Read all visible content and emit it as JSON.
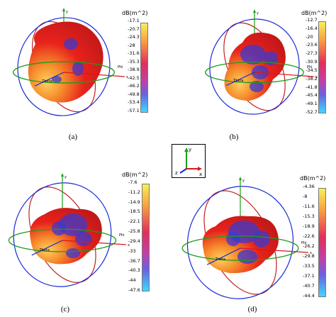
{
  "panels": [
    {
      "caption": "(a)",
      "colorbar": {
        "title": "dB(m^2)",
        "ticks": [
          "-17.1",
          "-20.7",
          "-24.3",
          "-28",
          "-31.6",
          "-35.3",
          "-38.9",
          "-42.5",
          "-46.2",
          "-49.8",
          "-53.4",
          "-57.1"
        ]
      },
      "labels": {
        "y": "y",
        "x": "x",
        "phi": "Phi",
        "theta": "Theta"
      }
    },
    {
      "caption": "(b)",
      "colorbar": {
        "title": "dB(m^2)",
        "ticks": [
          "-12.7",
          "-16.4",
          "-20",
          "-23.6",
          "-27.3",
          "-30.9",
          "-34.5",
          "-38.2",
          "-41.8",
          "-45.4",
          "-49.1",
          "-52.7"
        ]
      },
      "labels": {
        "y": "y",
        "x": "x",
        "phi": "Phi",
        "theta": "Theta"
      }
    },
    {
      "caption": "(c)",
      "colorbar": {
        "title": "dB(m^2)",
        "ticks": [
          "-7.6",
          "-11.2",
          "-14.9",
          "-18.5",
          "-22.1",
          "-25.8",
          "-29.4",
          "-33",
          "-36.7",
          "-40.3",
          "-44",
          "-47.6"
        ]
      },
      "labels": {
        "y": "y",
        "x": "x",
        "phi": "Phi",
        "theta": "Theta"
      }
    },
    {
      "caption": "(d)",
      "colorbar": {
        "title": "dB(m^2)",
        "ticks": [
          "-4.36",
          "-8",
          "-11.6",
          "-15.3",
          "-18.9",
          "-22.6",
          "-26.2",
          "-29.8",
          "-33.5",
          "-37.1",
          "-40.7",
          "-44.4"
        ]
      },
      "labels": {
        "y": "y",
        "x": "x",
        "phi": "Phi",
        "theta": "Theta"
      }
    }
  ],
  "axis_inset": {
    "y": "y",
    "x": "x",
    "z": "z"
  },
  "colors": {
    "colorbar_top": "#f5f05a",
    "colorbar_mid": "#e0305a",
    "colorbar_bottom": "#40d8ff",
    "pattern_red": "#e8221c",
    "pattern_orange": "#f58a2a",
    "pattern_blue": "#3a3ad0",
    "ring_blue": "#1a2bd8",
    "ring_red": "#c02020",
    "ring_green": "#1c9c1c"
  }
}
